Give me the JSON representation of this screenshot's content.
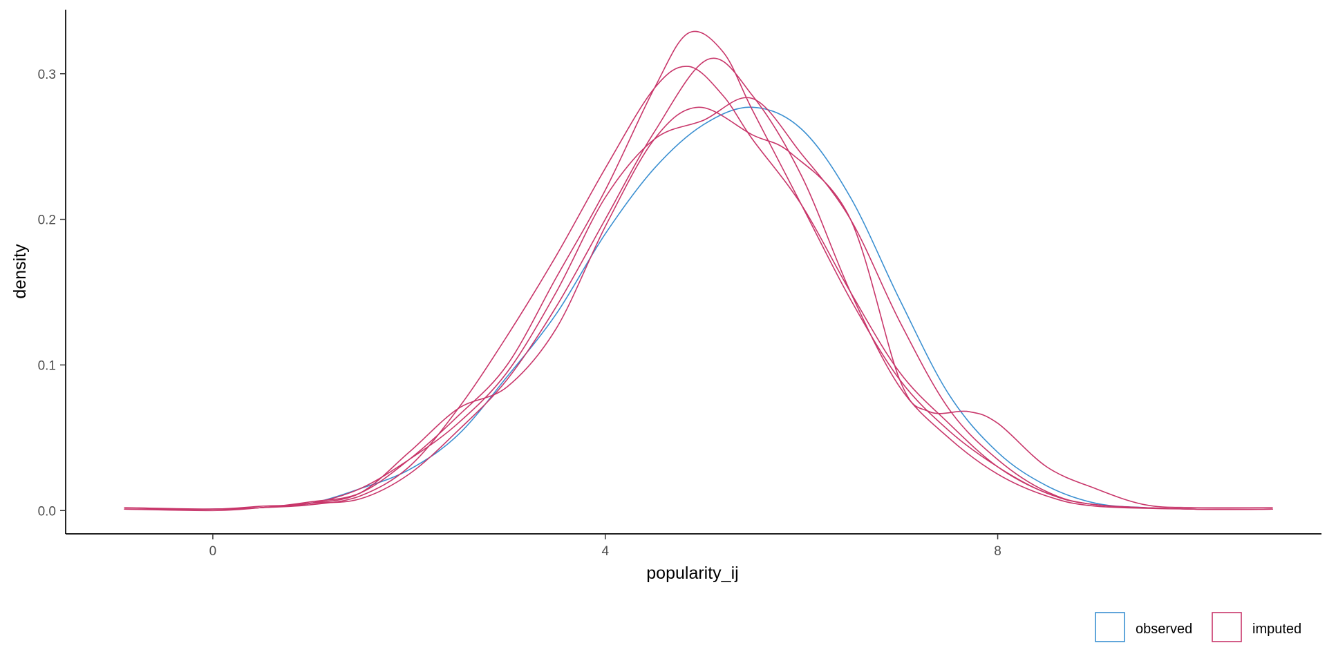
{
  "chart_data": {
    "type": "line",
    "title": "",
    "xlabel": "popularity_ij",
    "ylabel": "density",
    "xlim": [
      -1.5,
      11.3
    ],
    "ylim": [
      -0.016,
      0.344
    ],
    "x_ticks": [
      0,
      4,
      8
    ],
    "y_ticks": [
      0.0,
      0.1,
      0.2,
      0.3
    ],
    "y_tick_labels": [
      "0.0",
      "0.1",
      "0.2",
      "0.3"
    ],
    "grid": false,
    "legend": {
      "position": "bottom-right",
      "entries": [
        {
          "label": "observed",
          "color": "#3a8fd1"
        },
        {
          "label": "imputed",
          "color": "#c8366a"
        }
      ]
    },
    "series": [
      {
        "group": "observed",
        "color": "#3a8fd1",
        "points": [
          [
            -0.5,
            0.001
          ],
          [
            0,
            0.001
          ],
          [
            0.5,
            0.002
          ],
          [
            1,
            0.005
          ],
          [
            1.5,
            0.015
          ],
          [
            2,
            0.028
          ],
          [
            2.5,
            0.052
          ],
          [
            3,
            0.092
          ],
          [
            3.5,
            0.135
          ],
          [
            4,
            0.19
          ],
          [
            4.5,
            0.235
          ],
          [
            5,
            0.265
          ],
          [
            5.5,
            0.277
          ],
          [
            6,
            0.262
          ],
          [
            6.5,
            0.215
          ],
          [
            7,
            0.145
          ],
          [
            7.5,
            0.08
          ],
          [
            8,
            0.04
          ],
          [
            8.5,
            0.017
          ],
          [
            9,
            0.005
          ],
          [
            9.5,
            0.002
          ],
          [
            10,
            0.001
          ]
        ]
      },
      {
        "group": "imputed",
        "color": "#c8366a",
        "points": [
          [
            -0.9,
            0.002
          ],
          [
            0,
            0.001
          ],
          [
            0.5,
            0.002
          ],
          [
            1,
            0.006
          ],
          [
            1.5,
            0.012
          ],
          [
            2,
            0.035
          ],
          [
            2.5,
            0.065
          ],
          [
            3,
            0.1
          ],
          [
            3.5,
            0.16
          ],
          [
            4,
            0.22
          ],
          [
            4.5,
            0.29
          ],
          [
            4.85,
            0.328
          ],
          [
            5.2,
            0.315
          ],
          [
            5.5,
            0.275
          ],
          [
            6,
            0.21
          ],
          [
            6.5,
            0.145
          ],
          [
            7,
            0.09
          ],
          [
            7.5,
            0.055
          ],
          [
            8,
            0.03
          ],
          [
            8.5,
            0.012
          ],
          [
            9,
            0.004
          ],
          [
            10,
            0.001
          ],
          [
            10.8,
            0.001
          ]
        ]
      },
      {
        "group": "imputed",
        "color": "#c8366a",
        "points": [
          [
            -0.9,
            0.001
          ],
          [
            0,
            0.001
          ],
          [
            0.5,
            0.002
          ],
          [
            1,
            0.004
          ],
          [
            1.5,
            0.01
          ],
          [
            2,
            0.03
          ],
          [
            2.5,
            0.07
          ],
          [
            3,
            0.12
          ],
          [
            3.5,
            0.175
          ],
          [
            4,
            0.235
          ],
          [
            4.5,
            0.29
          ],
          [
            4.85,
            0.305
          ],
          [
            5.2,
            0.285
          ],
          [
            5.5,
            0.255
          ],
          [
            6,
            0.21
          ],
          [
            6.5,
            0.15
          ],
          [
            7,
            0.095
          ],
          [
            7.5,
            0.06
          ],
          [
            8,
            0.03
          ],
          [
            8.5,
            0.012
          ],
          [
            9,
            0.004
          ],
          [
            10,
            0.001
          ],
          [
            10.8,
            0.001
          ]
        ]
      },
      {
        "group": "imputed",
        "color": "#c8366a",
        "points": [
          [
            -0.9,
            0.001
          ],
          [
            0,
            0.0
          ],
          [
            0.5,
            0.002
          ],
          [
            1,
            0.005
          ],
          [
            1.5,
            0.008
          ],
          [
            2,
            0.025
          ],
          [
            2.5,
            0.055
          ],
          [
            3,
            0.09
          ],
          [
            3.5,
            0.14
          ],
          [
            4,
            0.2
          ],
          [
            4.5,
            0.26
          ],
          [
            5.05,
            0.31
          ],
          [
            5.5,
            0.285
          ],
          [
            6,
            0.23
          ],
          [
            6.5,
            0.15
          ],
          [
            7,
            0.085
          ],
          [
            7.5,
            0.05
          ],
          [
            8,
            0.025
          ],
          [
            8.5,
            0.01
          ],
          [
            9,
            0.003
          ],
          [
            10,
            0.001
          ],
          [
            10.8,
            0.001
          ]
        ]
      },
      {
        "group": "imputed",
        "color": "#c8366a",
        "points": [
          [
            -0.9,
            0.001
          ],
          [
            0,
            0.001
          ],
          [
            0.5,
            0.002
          ],
          [
            1,
            0.005
          ],
          [
            1.5,
            0.012
          ],
          [
            2,
            0.04
          ],
          [
            2.5,
            0.07
          ],
          [
            3,
            0.085
          ],
          [
            3.5,
            0.125
          ],
          [
            4,
            0.195
          ],
          [
            4.5,
            0.255
          ],
          [
            4.95,
            0.277
          ],
          [
            5.5,
            0.258
          ],
          [
            5.9,
            0.245
          ],
          [
            6.5,
            0.2
          ],
          [
            7,
            0.09
          ],
          [
            7.3,
            0.068
          ],
          [
            7.7,
            0.068
          ],
          [
            8,
            0.06
          ],
          [
            8.5,
            0.03
          ],
          [
            9,
            0.015
          ],
          [
            9.5,
            0.004
          ],
          [
            10,
            0.002
          ],
          [
            10.8,
            0.002
          ]
        ]
      },
      {
        "group": "imputed",
        "color": "#c8366a",
        "points": [
          [
            -0.9,
            0.001
          ],
          [
            0,
            0.001
          ],
          [
            0.5,
            0.003
          ],
          [
            1,
            0.005
          ],
          [
            1.5,
            0.015
          ],
          [
            2,
            0.035
          ],
          [
            2.5,
            0.06
          ],
          [
            3,
            0.095
          ],
          [
            3.5,
            0.15
          ],
          [
            4,
            0.215
          ],
          [
            4.5,
            0.255
          ],
          [
            5,
            0.268
          ],
          [
            5.5,
            0.283
          ],
          [
            6,
            0.245
          ],
          [
            6.5,
            0.2
          ],
          [
            7,
            0.13
          ],
          [
            7.5,
            0.07
          ],
          [
            8,
            0.035
          ],
          [
            8.5,
            0.013
          ],
          [
            9,
            0.004
          ],
          [
            10,
            0.001
          ],
          [
            10.8,
            0.001
          ]
        ]
      }
    ]
  }
}
